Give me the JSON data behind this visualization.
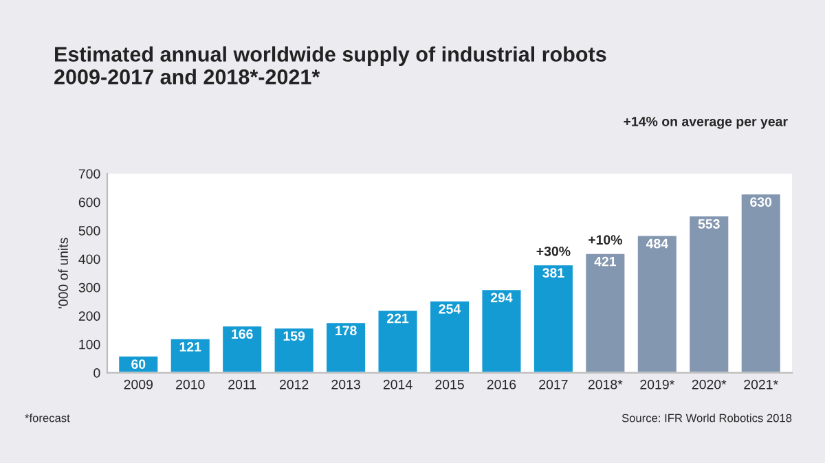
{
  "chart_data": {
    "type": "bar",
    "title": "Estimated annual worldwide supply of industrial robots\n2009-2017 and 2018*-2021*",
    "ylabel": "'000 of units",
    "categories": [
      "2009",
      "2010",
      "2011",
      "2012",
      "2013",
      "2014",
      "2015",
      "2016",
      "2017",
      "2018*",
      "2019*",
      "2020*",
      "2021*"
    ],
    "values": [
      60,
      121,
      166,
      159,
      178,
      221,
      254,
      294,
      381,
      421,
      484,
      553,
      630
    ],
    "colors": [
      "#159bd4",
      "#159bd4",
      "#159bd4",
      "#159bd4",
      "#159bd4",
      "#159bd4",
      "#159bd4",
      "#159bd4",
      "#159bd4",
      "#8497b0",
      "#8497b0",
      "#8497b0",
      "#8497b0"
    ],
    "ylim": [
      0,
      700
    ],
    "yticks": [
      0,
      100,
      200,
      300,
      400,
      500,
      600,
      700
    ],
    "data_labels": true,
    "grid": false,
    "legend": false,
    "annotations": [
      {
        "text": "+30%",
        "x": "2017",
        "y": 381
      },
      {
        "text": "+10%",
        "x": "2018*",
        "y": 421
      },
      "+14% on average per year",
      "*forecast",
      "Source: IFR World Robotics 2018"
    ]
  }
}
